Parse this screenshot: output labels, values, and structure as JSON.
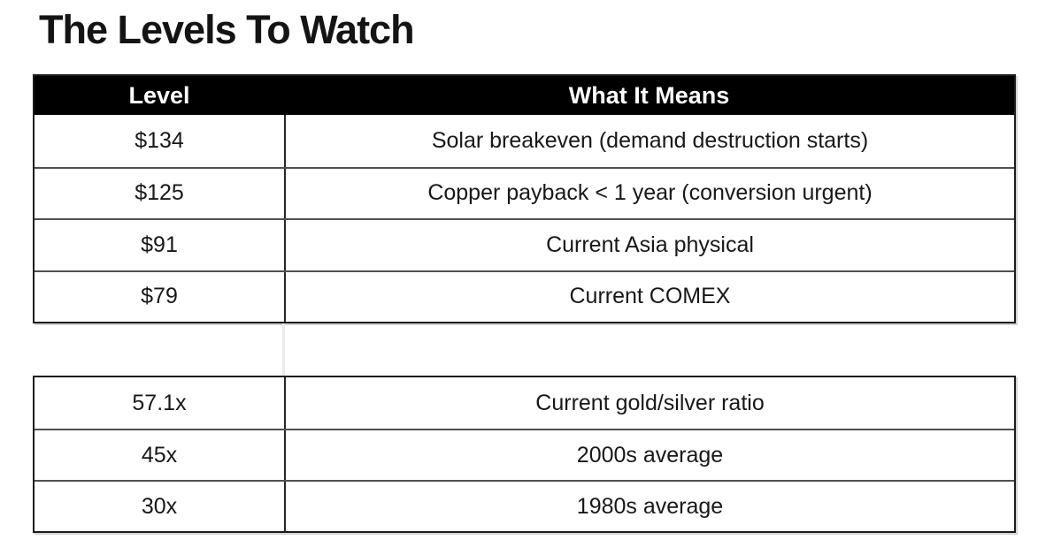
{
  "title": "The Levels To Watch",
  "colors": {
    "header_bg": "#000000",
    "header_text": "#ffffff",
    "body_text": "#181818",
    "outer_border": "#1c1c1c",
    "row_divider": "#4f4f4f",
    "ghost_line": "#ebebeb",
    "page_bg": "#ffffff"
  },
  "levels_table": {
    "headers": [
      "Level",
      "What It Means"
    ],
    "rows": [
      {
        "level": "$134",
        "meaning": "Solar breakeven (demand destruction starts)"
      },
      {
        "level": "$125",
        "meaning": "Copper payback < 1 year (conversion urgent)"
      },
      {
        "level": "$91",
        "meaning": "Current Asia physical"
      },
      {
        "level": "$79",
        "meaning": "Current COMEX"
      }
    ]
  },
  "ratio_table": {
    "rows": [
      {
        "level": "57.1x",
        "meaning": "Current gold/silver ratio"
      },
      {
        "level": "45x",
        "meaning": "2000s average"
      },
      {
        "level": "30x",
        "meaning": "1980s average"
      }
    ]
  }
}
